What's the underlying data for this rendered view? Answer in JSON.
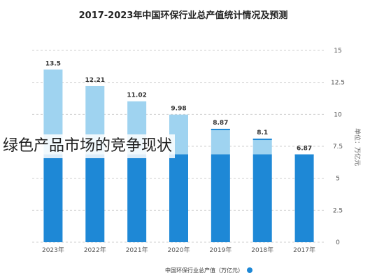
{
  "overlay_caption": "绿色产品市场的竞争现状",
  "chart_data": {
    "type": "bar",
    "title": "2017-2023年中国环保行业总产值统计情况及预测",
    "categories": [
      "2023年",
      "2022年",
      "2021年",
      "2020年",
      "2019年",
      "2018年",
      "2017年"
    ],
    "values": [
      13.5,
      12.21,
      11.02,
      9.98,
      8.87,
      8.1,
      6.87
    ],
    "value_labels": [
      "13.5",
      "12.21",
      "11.02",
      "9.98",
      "8.87",
      "8.1",
      "6.87"
    ],
    "base_values": [
      6.87,
      6.87,
      6.87,
      6.87,
      6.87,
      6.87,
      6.87
    ],
    "y_ticks": [
      "15",
      "12.5",
      "10",
      "7.5",
      "5",
      "2.5",
      "0"
    ],
    "y_tick_values": [
      15,
      12.5,
      10,
      7.5,
      5,
      2.5,
      0
    ],
    "ylim": [
      0,
      15
    ],
    "ylabel": "单位：万亿元",
    "legend": [
      {
        "name": "中国环保行业总产值（万亿元）",
        "color": "#1e88d6"
      }
    ],
    "colors": {
      "bar": "#1e88d6",
      "bar_increment": "#9fd3f0",
      "grid": "#cfcfcf"
    },
    "grid": true,
    "legend_position": "bottom"
  }
}
